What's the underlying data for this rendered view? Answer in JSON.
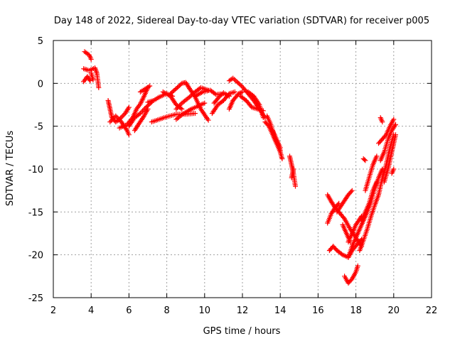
{
  "chart_data": {
    "type": "scatter",
    "title": "Day 148 of 2022, Sidereal Day-to-day VTEC variation (SDTVAR) for receiver p005",
    "xlabel": "GPS time / hours",
    "ylabel": "SDTVAR / TECUs",
    "xlim": [
      2,
      22
    ],
    "ylim": [
      -25,
      5
    ],
    "xticks": [
      2,
      4,
      6,
      8,
      10,
      12,
      14,
      16,
      18,
      20,
      22
    ],
    "yticks": [
      5,
      0,
      -5,
      -10,
      -15,
      -20,
      -25
    ],
    "grid": true,
    "marker": "+",
    "series_color": "#ff0000",
    "tracks": [
      [
        [
          3.65,
          3.7
        ],
        [
          3.9,
          3.3
        ],
        [
          4.0,
          2.8
        ]
      ],
      [
        [
          3.6,
          1.7
        ],
        [
          3.9,
          1.5
        ],
        [
          4.2,
          1.8
        ],
        [
          4.3,
          1.2
        ],
        [
          4.4,
          -0.5
        ]
      ],
      [
        [
          3.6,
          0.2
        ],
        [
          3.8,
          0.8
        ],
        [
          3.95,
          0.3
        ]
      ],
      [
        [
          4.0,
          1.2
        ],
        [
          4.1,
          0.4
        ]
      ],
      [
        [
          4.9,
          -2.0
        ],
        [
          5.0,
          -3.0
        ],
        [
          5.1,
          -4.0
        ],
        [
          5.3,
          -4.5
        ],
        [
          5.5,
          -4.2
        ],
        [
          5.8,
          -3.5
        ],
        [
          6.0,
          -2.8
        ]
      ],
      [
        [
          5.0,
          -4.5
        ],
        [
          5.3,
          -3.8
        ],
        [
          5.6,
          -4.5
        ],
        [
          5.9,
          -5.5
        ],
        [
          6.0,
          -6.0
        ]
      ],
      [
        [
          5.5,
          -5.2
        ],
        [
          5.9,
          -4.8
        ],
        [
          6.2,
          -4.0
        ],
        [
          6.4,
          -3.0
        ],
        [
          6.6,
          -2.4
        ],
        [
          6.8,
          -1.5
        ],
        [
          7.0,
          -0.5
        ]
      ],
      [
        [
          6.0,
          -5.0
        ],
        [
          6.3,
          -4.0
        ],
        [
          6.6,
          -3.5
        ],
        [
          6.9,
          -2.8
        ],
        [
          7.2,
          -2.2
        ]
      ],
      [
        [
          6.3,
          -5.5
        ],
        [
          6.5,
          -4.8
        ],
        [
          6.8,
          -3.8
        ],
        [
          7.0,
          -3.0
        ]
      ],
      [
        [
          6.6,
          -1.0
        ],
        [
          6.9,
          -0.6
        ],
        [
          7.1,
          -0.3
        ]
      ],
      [
        [
          7.0,
          -2.2
        ],
        [
          7.3,
          -2.0
        ],
        [
          7.6,
          -1.6
        ],
        [
          8.0,
          -1.2
        ],
        [
          8.3,
          -1.5
        ]
      ],
      [
        [
          7.2,
          -4.5
        ],
        [
          7.6,
          -4.2
        ],
        [
          8.0,
          -3.9
        ],
        [
          8.5,
          -3.6
        ],
        [
          9.0,
          -3.6
        ],
        [
          9.5,
          -3.5
        ]
      ],
      [
        [
          7.8,
          -1.0
        ],
        [
          8.2,
          -1.5
        ],
        [
          8.5,
          -2.5
        ],
        [
          8.8,
          -3.0
        ]
      ],
      [
        [
          8.2,
          -1.2
        ],
        [
          8.5,
          -0.6
        ],
        [
          8.8,
          0.0
        ],
        [
          9.0,
          0.1
        ],
        [
          9.2,
          -0.6
        ],
        [
          9.5,
          -1.6
        ],
        [
          9.8,
          -3.0
        ],
        [
          10.1,
          -4.0
        ],
        [
          10.2,
          -4.3
        ]
      ],
      [
        [
          8.5,
          -3.0
        ],
        [
          8.8,
          -2.3
        ],
        [
          9.2,
          -1.6
        ],
        [
          9.5,
          -1.0
        ],
        [
          9.8,
          -0.5
        ],
        [
          10.2,
          -0.8
        ]
      ],
      [
        [
          8.5,
          -4.2
        ],
        [
          8.9,
          -3.5
        ],
        [
          9.3,
          -3.0
        ],
        [
          9.7,
          -2.6
        ],
        [
          10.0,
          -2.3
        ]
      ],
      [
        [
          9.5,
          -1.5
        ],
        [
          9.9,
          -1.0
        ],
        [
          10.3,
          -0.8
        ],
        [
          10.6,
          -1.3
        ],
        [
          11.0,
          -1.2
        ]
      ],
      [
        [
          10.4,
          -3.5
        ],
        [
          10.7,
          -2.5
        ],
        [
          11.0,
          -2.0
        ],
        [
          11.3,
          -1.2
        ],
        [
          11.6,
          -1.0
        ]
      ],
      [
        [
          10.5,
          -2.3
        ],
        [
          10.8,
          -1.5
        ],
        [
          11.0,
          -1.1
        ],
        [
          11.3,
          -1.5
        ]
      ],
      [
        [
          11.3,
          -3.0
        ],
        [
          11.5,
          -2.0
        ],
        [
          11.8,
          -1.2
        ],
        [
          12.0,
          -1.0
        ]
      ],
      [
        [
          11.3,
          0.3
        ],
        [
          11.5,
          0.6
        ],
        [
          11.7,
          0.2
        ],
        [
          12.0,
          -0.4
        ],
        [
          12.3,
          -1.2
        ],
        [
          12.6,
          -2.0
        ],
        [
          12.9,
          -3.0
        ],
        [
          13.2,
          -4.0
        ]
      ],
      [
        [
          11.9,
          -1.5
        ],
        [
          12.2,
          -2.0
        ],
        [
          12.5,
          -2.8
        ],
        [
          12.8,
          -3.0
        ],
        [
          13.1,
          -3.2
        ]
      ],
      [
        [
          12.3,
          -1.0
        ],
        [
          12.6,
          -1.5
        ],
        [
          12.9,
          -2.5
        ],
        [
          13.1,
          -4.0
        ]
      ],
      [
        [
          13.2,
          -4.5
        ],
        [
          13.4,
          -5.0
        ],
        [
          13.6,
          -6.0
        ],
        [
          13.8,
          -7.0
        ],
        [
          14.0,
          -8.0
        ],
        [
          14.1,
          -8.8
        ]
      ],
      [
        [
          13.3,
          -3.8
        ],
        [
          13.5,
          -4.8
        ],
        [
          13.7,
          -6.3
        ],
        [
          13.9,
          -7.2
        ],
        [
          14.0,
          -7.8
        ]
      ],
      [
        [
          13.6,
          -5.5
        ],
        [
          13.8,
          -6.5
        ],
        [
          14.0,
          -7.5
        ]
      ],
      [
        [
          14.5,
          -8.5
        ],
        [
          14.6,
          -9.5
        ],
        [
          14.7,
          -10.5
        ],
        [
          14.8,
          -12.0
        ]
      ],
      [
        [
          14.6,
          -11.0
        ],
        [
          14.7,
          -10.0
        ]
      ],
      [
        [
          16.5,
          -16.3
        ],
        [
          16.7,
          -15.2
        ],
        [
          16.9,
          -14.5
        ],
        [
          17.1,
          -14.0
        ]
      ],
      [
        [
          16.5,
          -13.0
        ],
        [
          16.7,
          -13.8
        ],
        [
          16.9,
          -14.5
        ],
        [
          17.1,
          -15.0
        ],
        [
          17.4,
          -15.8
        ],
        [
          17.7,
          -17.0
        ],
        [
          18.0,
          -18.0
        ],
        [
          18.3,
          -19.0
        ]
      ],
      [
        [
          16.6,
          -19.5
        ],
        [
          16.8,
          -19.0
        ],
        [
          17.0,
          -19.5
        ],
        [
          17.3,
          -20.0
        ],
        [
          17.6,
          -20.3
        ],
        [
          17.8,
          -19.5
        ],
        [
          18.1,
          -18.7
        ],
        [
          18.3,
          -18.2
        ]
      ],
      [
        [
          17.0,
          -15.0
        ],
        [
          17.3,
          -14.0
        ],
        [
          17.6,
          -13.0
        ],
        [
          17.8,
          -12.5
        ]
      ],
      [
        [
          17.3,
          -16.5
        ],
        [
          17.5,
          -17.5
        ],
        [
          17.7,
          -18.5
        ]
      ],
      [
        [
          17.4,
          -22.5
        ],
        [
          17.6,
          -23.3
        ],
        [
          17.8,
          -22.8
        ],
        [
          18.0,
          -22.0
        ],
        [
          18.1,
          -21.3
        ]
      ],
      [
        [
          17.6,
          -18.5
        ],
        [
          17.8,
          -17.5
        ],
        [
          18.0,
          -16.5
        ],
        [
          18.3,
          -15.5
        ]
      ],
      [
        [
          17.6,
          -20.3
        ],
        [
          17.8,
          -19.0
        ],
        [
          18.0,
          -18.0
        ],
        [
          18.2,
          -17.0
        ],
        [
          18.4,
          -16.0
        ],
        [
          18.6,
          -15.0
        ],
        [
          18.8,
          -13.8
        ],
        [
          19.0,
          -12.3
        ],
        [
          19.2,
          -11.0
        ],
        [
          19.4,
          -10.0
        ]
      ],
      [
        [
          18.2,
          -19.5
        ],
        [
          18.4,
          -18.3
        ],
        [
          18.6,
          -17.0
        ],
        [
          18.8,
          -15.5
        ],
        [
          19.0,
          -14.2
        ],
        [
          19.2,
          -13.0
        ]
      ],
      [
        [
          18.3,
          -16.0
        ],
        [
          18.5,
          -15.0
        ],
        [
          18.7,
          -14.0
        ],
        [
          18.9,
          -12.5
        ],
        [
          19.1,
          -11.5
        ]
      ],
      [
        [
          18.5,
          -12.5
        ],
        [
          18.7,
          -11.0
        ],
        [
          18.9,
          -9.5
        ],
        [
          19.1,
          -8.5
        ]
      ],
      [
        [
          18.4,
          -8.8
        ],
        [
          18.5,
          -9.0
        ]
      ],
      [
        [
          19.2,
          -7.0
        ],
        [
          19.4,
          -6.5
        ],
        [
          19.6,
          -6.0
        ],
        [
          19.8,
          -5.0
        ],
        [
          20.0,
          -4.2
        ]
      ],
      [
        [
          19.3,
          -9.0
        ],
        [
          19.5,
          -8.0
        ],
        [
          19.7,
          -6.5
        ],
        [
          19.9,
          -5.5
        ],
        [
          20.1,
          -4.8
        ]
      ],
      [
        [
          19.2,
          -13.0
        ],
        [
          19.4,
          -11.0
        ],
        [
          19.6,
          -9.5
        ],
        [
          19.8,
          -7.5
        ],
        [
          20.0,
          -6.0
        ]
      ],
      [
        [
          19.5,
          -11.5
        ],
        [
          19.7,
          -10.0
        ],
        [
          19.9,
          -8.0
        ],
        [
          20.1,
          -6.0
        ]
      ],
      [
        [
          19.3,
          -4.0
        ],
        [
          19.4,
          -4.5
        ]
      ],
      [
        [
          19.9,
          -10.5
        ],
        [
          20.0,
          -10.0
        ]
      ]
    ]
  }
}
